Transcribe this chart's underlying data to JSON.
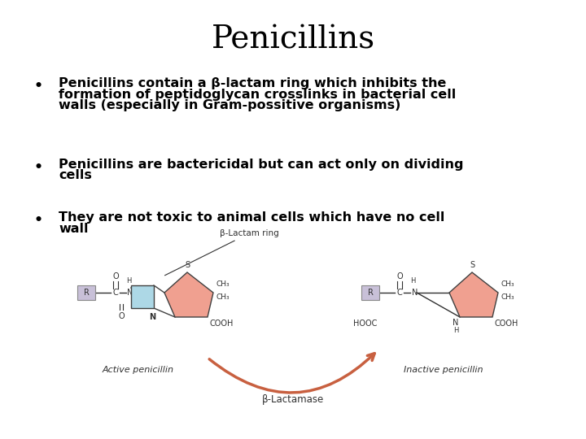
{
  "title": "Penicillins",
  "title_fontsize": 28,
  "title_font": "serif",
  "background_color": "#ffffff",
  "text_color": "#000000",
  "bullet_points": [
    "Penicillins contain a β-lactam ring which inhibits the\nformation of peptidoglycan crosslinks in bacterial cell\nwalls (especially in Gram-possitive organisms)",
    "Penicillins are bactericidal but can act only on dividing\ncells",
    "They are not toxic to animal cells which have no cell\nwall"
  ],
  "bullet_fontsize": 11.5,
  "bullet_font": "DejaVu Sans",
  "ring_color_blue": "#add8e6",
  "ring_color_pink": "#f0a090",
  "ring_color_lavender": "#c8c0d8",
  "arrow_color": "#c86040",
  "label_fontsize": 7.5,
  "chem_fontsize": 7,
  "struct_label_fontsize": 8
}
